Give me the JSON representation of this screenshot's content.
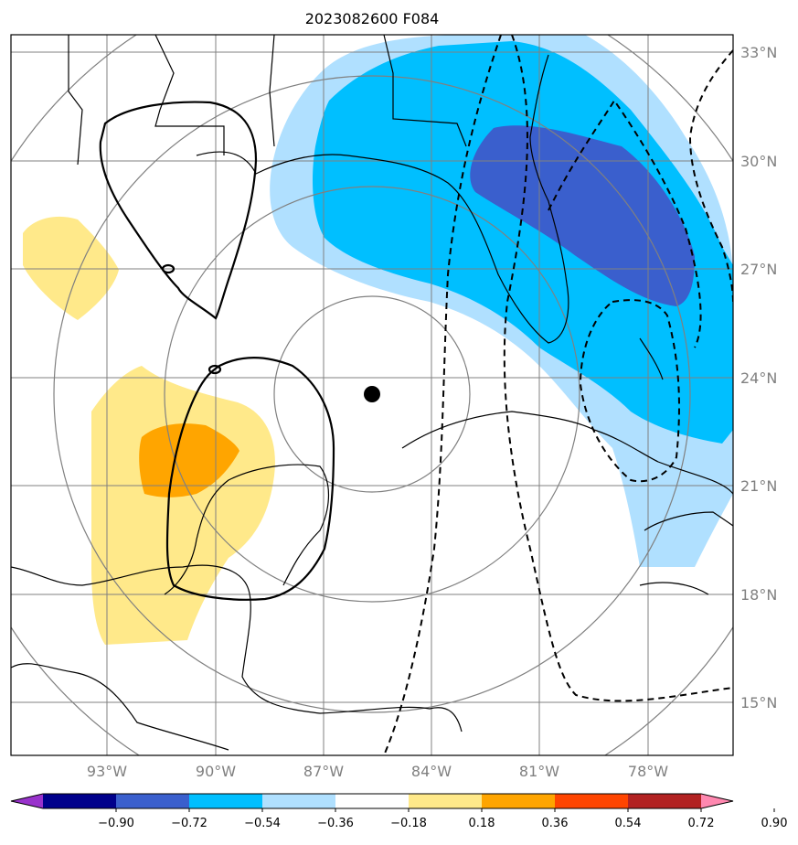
{
  "title": "2023082600 F084",
  "map": {
    "lat_labels": [
      "33°N",
      "30°N",
      "27°N",
      "24°N",
      "21°N",
      "18°N",
      "15°N"
    ],
    "lon_labels": [
      "93°W",
      "90°W",
      "87°W",
      "84°W",
      "81°W",
      "78°W"
    ],
    "center_marker": "storm-center-dot",
    "gridline_color": "#808080",
    "coastline_color": "#000000"
  },
  "colorbar": {
    "labels": [
      "−0.90",
      "−0.72",
      "−0.54",
      "−0.36",
      "−0.18",
      "0.18",
      "0.36",
      "0.54",
      "0.72",
      "0.90"
    ],
    "colors": [
      "#9932cc",
      "#00008b",
      "#3a5fcd",
      "#00bfff",
      "#b0e0ff",
      "#ffffff",
      "#ffe98a",
      "#ffa500",
      "#ff4500",
      "#b22222",
      "#ff88b0"
    ],
    "extend": "both"
  },
  "chart_data": {
    "type": "heatmap",
    "title": "2023082600 F084",
    "xlabel": "",
    "ylabel": "",
    "xlim": [
      -96,
      -76
    ],
    "ylim": [
      13.5,
      33.5
    ],
    "xticks": [
      -93,
      -90,
      -87,
      -84,
      -81,
      -78
    ],
    "yticks": [
      15,
      18,
      21,
      24,
      27,
      30,
      33
    ],
    "contour_levels": [
      -0.9,
      -0.72,
      -0.54,
      -0.36,
      -0.18,
      0.18,
      0.36,
      0.54,
      0.72,
      0.9
    ],
    "center": {
      "lon": -85.3,
      "lat": 23.5
    }
  }
}
